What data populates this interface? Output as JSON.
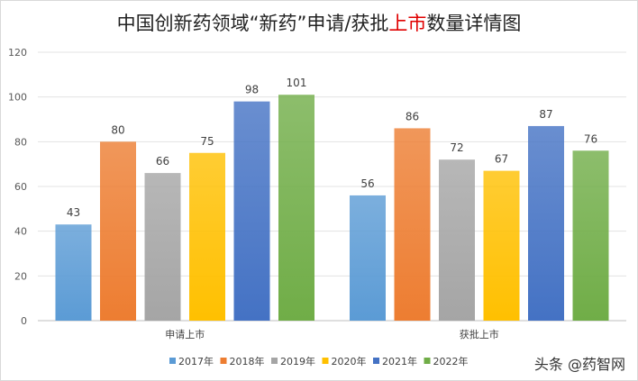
{
  "chart_data": {
    "type": "bar",
    "title_parts": [
      "中国创新药领域“新药”申请/获批",
      "上市",
      "数量详情图"
    ],
    "title_highlight_color": "#e00000",
    "categories": [
      "申请上市",
      "获批上市"
    ],
    "series": [
      {
        "name": "2017年",
        "color": "#5B9BD5",
        "values": [
          43,
          56
        ]
      },
      {
        "name": "2018年",
        "color": "#ED7D31",
        "values": [
          80,
          86
        ]
      },
      {
        "name": "2019年",
        "color": "#A5A5A5",
        "values": [
          66,
          72
        ]
      },
      {
        "name": "2020年",
        "color": "#FFC000",
        "values": [
          75,
          67
        ]
      },
      {
        "name": "2021年",
        "color": "#4472C4",
        "values": [
          98,
          87
        ]
      },
      {
        "name": "2022年",
        "color": "#70AD47",
        "values": [
          101,
          76
        ]
      }
    ],
    "ylim": [
      0,
      120
    ],
    "yticks": [
      0,
      20,
      40,
      60,
      80,
      100,
      120
    ],
    "grid": true,
    "legend": "bottom",
    "data_labels": true
  },
  "watermark": "头条 @药智网"
}
